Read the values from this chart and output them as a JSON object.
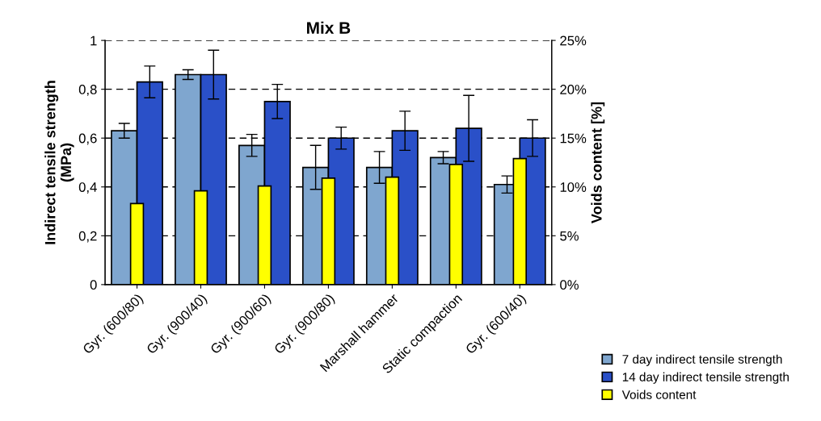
{
  "chart_data": {
    "type": "bar",
    "title": "Mix B",
    "ylabel": "Indirect tensile strength\n(MPa)",
    "y2label": "Voids content [%]",
    "categories": [
      "Gyr. (600/80)",
      "Gyr. (900/40)",
      "Gyr. (900/60)",
      "Gyr. (900/80)",
      "Marshall hammer",
      "Static compaction",
      "Gyr. (600/40)"
    ],
    "series": [
      {
        "name": "7 day indirect tensile strength",
        "color": "#7fa6cf",
        "values": [
          0.63,
          0.86,
          0.57,
          0.48,
          0.48,
          0.52,
          0.41
        ],
        "errors": [
          0.03,
          0.02,
          0.045,
          0.09,
          0.065,
          0.025,
          0.035
        ]
      },
      {
        "name": "14 day indirect tensile strength",
        "color": "#2a50c8",
        "values": [
          0.83,
          0.86,
          0.75,
          0.6,
          0.63,
          0.64,
          0.6
        ],
        "errors": [
          0.065,
          0.1,
          0.07,
          0.045,
          0.08,
          0.135,
          0.075
        ]
      },
      {
        "name": "Voids content",
        "color": "#ffff00",
        "axis": "y2",
        "values": [
          8.3,
          9.6,
          10.1,
          10.9,
          11.0,
          12.3,
          12.9
        ]
      }
    ],
    "ylim": [
      0,
      1
    ],
    "yticks": [
      0,
      {
        "value": 0.2,
        "label": "0,2"
      },
      {
        "value": 0.4,
        "label": "0,4"
      },
      {
        "value": 0.6,
        "label": "0,6"
      },
      {
        "value": 0.8,
        "label": "0,8"
      },
      1
    ],
    "y2lim": [
      0,
      25
    ],
    "y2ticks": [
      {
        "value": 0,
        "label": "0%"
      },
      {
        "value": 5,
        "label": "5%"
      },
      {
        "value": 10,
        "label": "10%"
      },
      {
        "value": 15,
        "label": "15%"
      },
      {
        "value": 20,
        "label": "20%"
      },
      {
        "value": 25,
        "label": "25%"
      }
    ],
    "grid": "y",
    "legend": "bottom right"
  }
}
